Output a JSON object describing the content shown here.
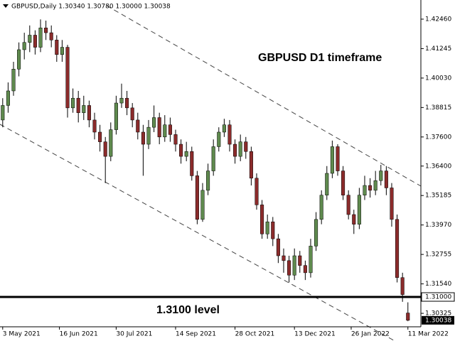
{
  "chart_data": {
    "type": "candlestick",
    "title": "GBPUSD,Daily  1.30340 1.30780 1.30000 1.30038",
    "annotations": [
      "GBPUSD D1 timeframe",
      "1.3100 level"
    ],
    "up_color": "#5f8a4e",
    "down_color": "#8b2b2b",
    "xlim": [
      -0.5,
      77.4
    ],
    "xticks": [
      {
        "value": 0,
        "label": "3 May 2021"
      },
      {
        "value": 10.5,
        "label": "16 Jun 2021"
      },
      {
        "value": 21,
        "label": "30 Jul 2021"
      },
      {
        "value": 32,
        "label": "14 Sep 2021"
      },
      {
        "value": 43,
        "label": "28 Oct 2021"
      },
      {
        "value": 54,
        "label": "13 Dec 2021"
      },
      {
        "value": 64.5,
        "label": "26 Jan 2022"
      },
      {
        "value": 75,
        "label": "11 Mar 2022"
      }
    ],
    "ylim": [
      1.2977,
      1.4325
    ],
    "yticks": [
      {
        "value": 1.4246,
        "label": "1.42460"
      },
      {
        "value": 1.41245,
        "label": "1.41245"
      },
      {
        "value": 1.4003,
        "label": "1.40030"
      },
      {
        "value": 1.38815,
        "label": "1.38815"
      },
      {
        "value": 1.376,
        "label": "1.37600"
      },
      {
        "value": 1.364,
        "label": "1.36400"
      },
      {
        "value": 1.35185,
        "label": "1.35185"
      },
      {
        "value": 1.3397,
        "label": "1.33970"
      },
      {
        "value": 1.32755,
        "label": "1.32755"
      },
      {
        "value": 1.3154,
        "label": "1.31540"
      },
      {
        "value": 1.30325,
        "label": "1.30325"
      }
    ],
    "level": {
      "value": 1.31,
      "label": "1.31000"
    },
    "last_price": 1.30038,
    "candles": [
      [
        1.383,
        1.392,
        1.38,
        1.389
      ],
      [
        1.389,
        1.3985,
        1.386,
        1.395
      ],
      [
        1.395,
        1.407,
        1.393,
        1.404
      ],
      [
        1.404,
        1.415,
        1.401,
        1.412
      ],
      [
        1.412,
        1.419,
        1.408,
        1.415
      ],
      [
        1.415,
        1.422,
        1.411,
        1.418
      ],
      [
        1.418,
        1.42,
        1.41,
        1.413
      ],
      [
        1.413,
        1.4245,
        1.411,
        1.421
      ],
      [
        1.421,
        1.424,
        1.416,
        1.419
      ],
      [
        1.419,
        1.422,
        1.413,
        1.416
      ],
      [
        1.416,
        1.418,
        1.407,
        1.41
      ],
      [
        1.41,
        1.416,
        1.407,
        1.413
      ],
      [
        1.413,
        1.414,
        1.384,
        1.388
      ],
      [
        1.388,
        1.396,
        1.386,
        1.392
      ],
      [
        1.392,
        1.395,
        1.382,
        1.386
      ],
      [
        1.386,
        1.393,
        1.383,
        1.389
      ],
      [
        1.389,
        1.391,
        1.38,
        1.383
      ],
      [
        1.383,
        1.386,
        1.375,
        1.378
      ],
      [
        1.378,
        1.381,
        1.37,
        1.374
      ],
      [
        1.374,
        1.376,
        1.357,
        1.368
      ],
      [
        1.368,
        1.382,
        1.366,
        1.379
      ],
      [
        1.379,
        1.393,
        1.377,
        1.39
      ],
      [
        1.39,
        1.398,
        1.388,
        1.392
      ],
      [
        1.392,
        1.395,
        1.385,
        1.388
      ],
      [
        1.388,
        1.39,
        1.38,
        1.383
      ],
      [
        1.383,
        1.386,
        1.375,
        1.378
      ],
      [
        1.378,
        1.381,
        1.36,
        1.373
      ],
      [
        1.373,
        1.383,
        1.371,
        1.38
      ],
      [
        1.38,
        1.389,
        1.378,
        1.384
      ],
      [
        1.384,
        1.386,
        1.373,
        1.376
      ],
      [
        1.376,
        1.385,
        1.374,
        1.381
      ],
      [
        1.381,
        1.384,
        1.374,
        1.377
      ],
      [
        1.377,
        1.379,
        1.37,
        1.373
      ],
      [
        1.373,
        1.375,
        1.365,
        1.368
      ],
      [
        1.368,
        1.374,
        1.366,
        1.37
      ],
      [
        1.37,
        1.372,
        1.358,
        1.36
      ],
      [
        1.36,
        1.362,
        1.34,
        1.342
      ],
      [
        1.342,
        1.357,
        1.341,
        1.354
      ],
      [
        1.354,
        1.365,
        1.352,
        1.362
      ],
      [
        1.362,
        1.375,
        1.36,
        1.372
      ],
      [
        1.372,
        1.38,
        1.37,
        1.378
      ],
      [
        1.378,
        1.3835,
        1.376,
        1.381
      ],
      [
        1.381,
        1.383,
        1.37,
        1.373
      ],
      [
        1.373,
        1.375,
        1.365,
        1.368
      ],
      [
        1.368,
        1.377,
        1.366,
        1.374
      ],
      [
        1.374,
        1.376,
        1.367,
        1.37
      ],
      [
        1.37,
        1.372,
        1.356,
        1.359
      ],
      [
        1.359,
        1.361,
        1.346,
        1.348
      ],
      [
        1.348,
        1.35,
        1.334,
        1.336
      ],
      [
        1.336,
        1.344,
        1.334,
        1.341
      ],
      [
        1.341,
        1.343,
        1.331,
        1.334
      ],
      [
        1.334,
        1.336,
        1.324,
        1.327
      ],
      [
        1.327,
        1.33,
        1.32,
        1.325
      ],
      [
        1.325,
        1.327,
        1.316,
        1.319
      ],
      [
        1.319,
        1.33,
        1.317,
        1.327
      ],
      [
        1.327,
        1.329,
        1.32,
        1.323
      ],
      [
        1.323,
        1.325,
        1.317,
        1.32
      ],
      [
        1.32,
        1.334,
        1.318,
        1.331
      ],
      [
        1.331,
        1.345,
        1.329,
        1.342
      ],
      [
        1.342,
        1.354,
        1.34,
        1.352
      ],
      [
        1.352,
        1.364,
        1.35,
        1.361
      ],
      [
        1.361,
        1.3745,
        1.359,
        1.372
      ],
      [
        1.372,
        1.373,
        1.36,
        1.362
      ],
      [
        1.362,
        1.364,
        1.35,
        1.352
      ],
      [
        1.352,
        1.354,
        1.342,
        1.344
      ],
      [
        1.344,
        1.346,
        1.336,
        1.34
      ],
      [
        1.34,
        1.355,
        1.338,
        1.352
      ],
      [
        1.352,
        1.36,
        1.35,
        1.356
      ],
      [
        1.356,
        1.359,
        1.351,
        1.354
      ],
      [
        1.354,
        1.362,
        1.352,
        1.358
      ],
      [
        1.358,
        1.3645,
        1.356,
        1.362
      ],
      [
        1.362,
        1.364,
        1.352,
        1.355
      ],
      [
        1.355,
        1.357,
        1.339,
        1.342
      ],
      [
        1.342,
        1.344,
        1.316,
        1.318
      ],
      [
        1.318,
        1.32,
        1.308,
        1.311
      ],
      [
        1.3034,
        1.3078,
        1.3,
        1.30038
      ]
    ]
  }
}
